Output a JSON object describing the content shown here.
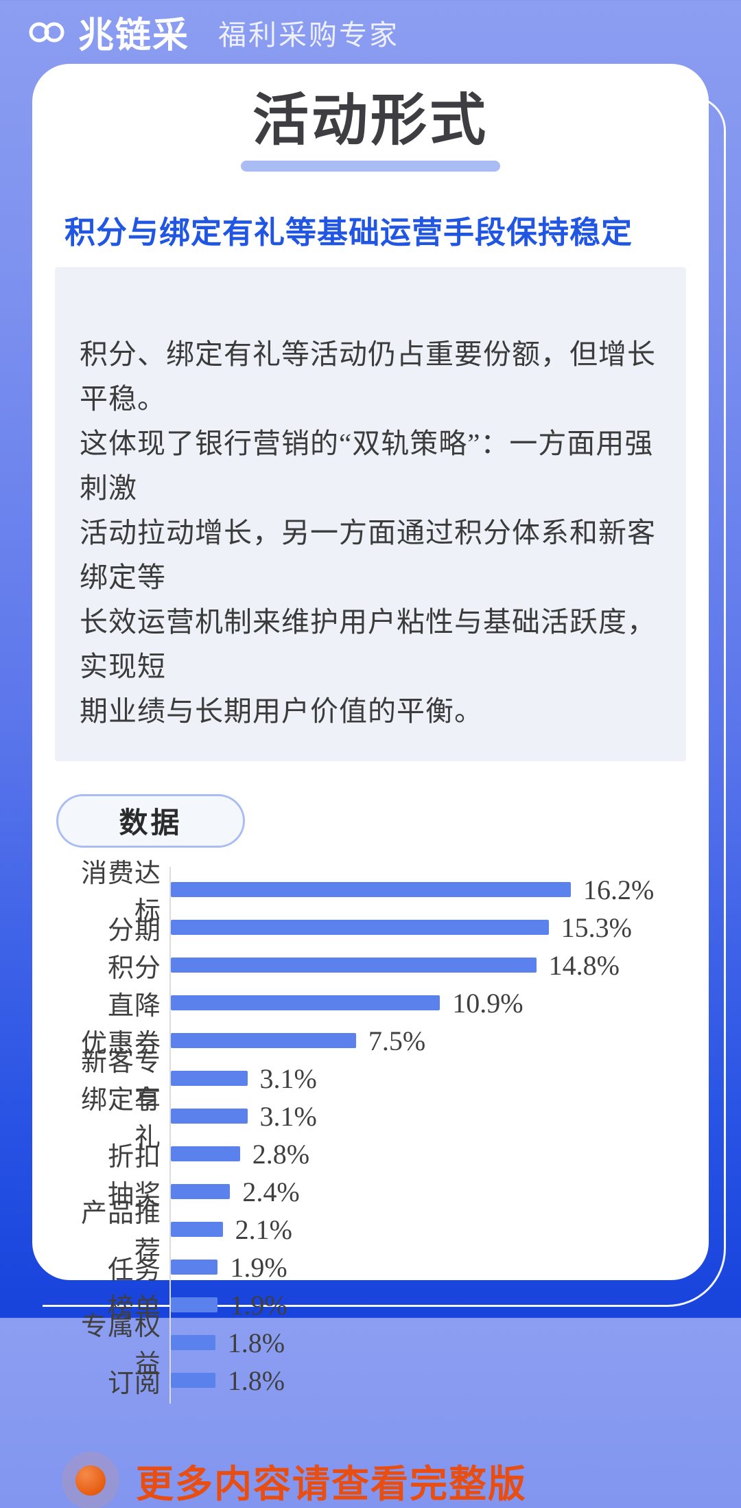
{
  "header": {
    "logo_text": "兆链采",
    "tagline": "福利采购专家",
    "logo_icon": "chain-link-icon"
  },
  "card": {
    "title": "活动形式",
    "heading": "积分与绑定有礼等基础运营手段保持稳定",
    "paragraph": "积分、绑定有礼等活动仍占重要份额，但增长平稳。\n这体现了银行营销的“双轨策略”：一方面用强刺激\n活动拉动增长，另一方面通过积分体系和新客绑定等\n长效运营机制来维护用户粘性与基础活跃度，实现短\n期业绩与长期用户价值的平衡。",
    "data_badge": "数据",
    "footer_note": "更多内容请查看完整版"
  },
  "chart_data": {
    "type": "bar",
    "orientation": "horizontal",
    "title": "",
    "xlabel": "",
    "ylabel": "",
    "xlim": [
      0,
      16.2
    ],
    "grid": false,
    "legend": "none",
    "bar_color": "#5B82EC",
    "categories": [
      "消费达标",
      "分期",
      "积分",
      "直降",
      "优惠券",
      "新客专享",
      "绑定有礼",
      "折扣",
      "抽奖",
      "产品推荐",
      "任务",
      "榜单",
      "专属权益",
      "订阅"
    ],
    "values": [
      16.2,
      15.3,
      14.8,
      10.9,
      7.5,
      3.1,
      3.1,
      2.8,
      2.4,
      2.1,
      1.9,
      1.9,
      1.8,
      1.8
    ],
    "value_labels": [
      "16.2%",
      "15.3%",
      "14.8%",
      "10.9%",
      "7.5%",
      "3.1%",
      "3.1%",
      "2.8%",
      "2.4%",
      "2.1%",
      "1.9%",
      "1.9%",
      "1.8%",
      "1.8%"
    ]
  },
  "colors": {
    "background_top": "#8C9EF1",
    "background_bottom": "#1843DC",
    "card": "#FFFFFF",
    "accent_underline": "#A9BDF4",
    "heading_blue": "#2156E3",
    "summary_box": "#EEF1F7",
    "bar": "#5B82EC",
    "footer_orange": "#E84E12"
  }
}
